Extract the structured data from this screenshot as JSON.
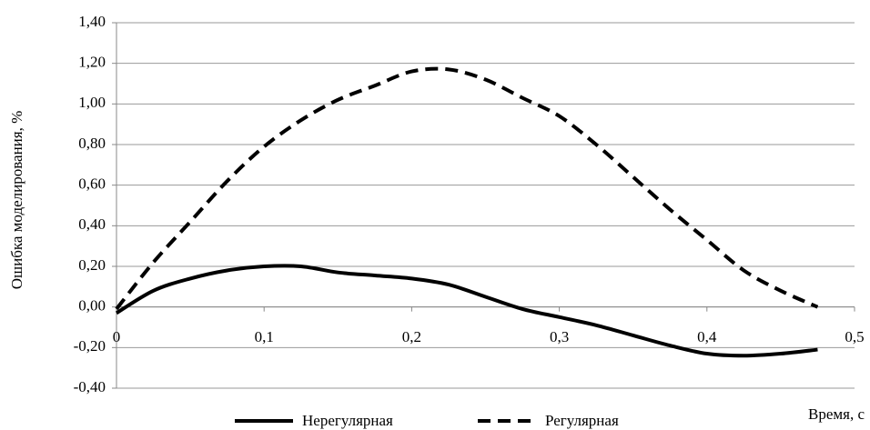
{
  "chart_data": {
    "type": "line",
    "x_label": "Время, с",
    "y_label": "Ошибка моделирования, %",
    "x": [
      0,
      0.025,
      0.05,
      0.075,
      0.1,
      0.125,
      0.15,
      0.175,
      0.2,
      0.225,
      0.25,
      0.275,
      0.3,
      0.325,
      0.35,
      0.375,
      0.4,
      0.425,
      0.45,
      0.475
    ],
    "series": [
      {
        "name": "Нерегулярная",
        "color": "#000000",
        "dash": "solid",
        "values": [
          -0.03,
          0.08,
          0.14,
          0.18,
          0.2,
          0.2,
          0.17,
          0.155,
          0.14,
          0.11,
          0.05,
          -0.01,
          -0.05,
          -0.09,
          -0.14,
          -0.19,
          -0.23,
          -0.24,
          -0.23,
          -0.21
        ]
      },
      {
        "name": "Регулярная",
        "color": "#000000",
        "dash": "dashed",
        "values": [
          -0.01,
          0.22,
          0.42,
          0.62,
          0.79,
          0.92,
          1.02,
          1.09,
          1.16,
          1.17,
          1.12,
          1.03,
          0.94,
          0.8,
          0.64,
          0.48,
          0.33,
          0.18,
          0.08,
          0.0
        ]
      }
    ],
    "xlim": [
      0,
      0.5
    ],
    "ylim": [
      -0.4,
      1.4
    ],
    "xticks": [
      0,
      {
        "value": 0.1,
        "label": "0,1"
      },
      {
        "value": 0.2,
        "label": "0,2"
      },
      {
        "value": 0.3,
        "label": "0,3"
      },
      {
        "value": 0.4,
        "label": "0,4"
      },
      {
        "value": 0.5,
        "label": "0,5"
      }
    ],
    "yticks": [
      {
        "value": -0.4,
        "label": "-0,40"
      },
      {
        "value": -0.2,
        "label": "-0,20"
      },
      {
        "value": 0,
        "label": "0,00"
      },
      {
        "value": 0.2,
        "label": "0,20"
      },
      {
        "value": 0.4,
        "label": "0,40"
      },
      {
        "value": 0.6,
        "label": "0,60"
      },
      {
        "value": 0.8,
        "label": "0,80"
      },
      {
        "value": 1.0,
        "label": "1,00"
      },
      {
        "value": 1.2,
        "label": "1,20"
      },
      {
        "value": 1.4,
        "label": "1,40"
      }
    ],
    "grid": true,
    "legend": "bottom"
  }
}
